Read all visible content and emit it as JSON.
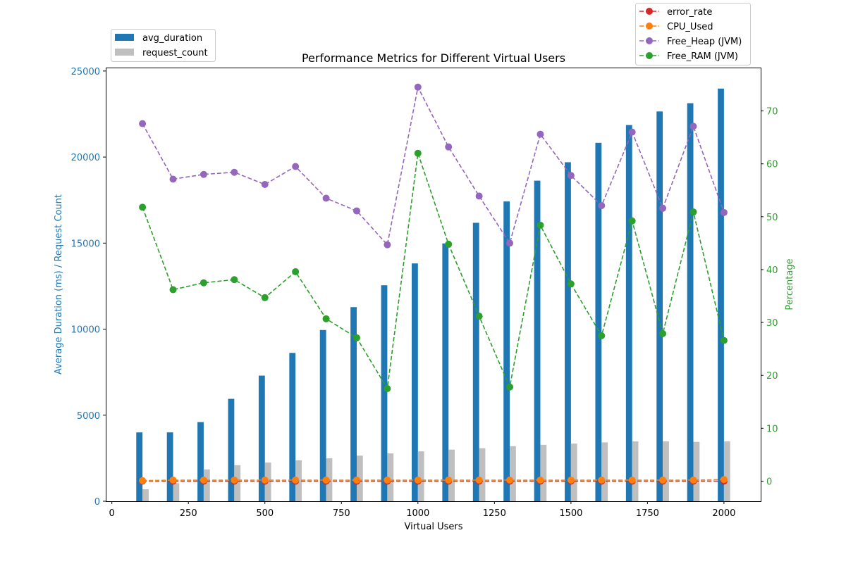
{
  "chart_data": {
    "type": "bar",
    "title": "Performance Metrics for Different Virtual Users",
    "xlabel": "Virtual Users",
    "ylabel_left": "Average Duration (ms) / Request Count",
    "ylabel_right": "Percentage",
    "xlim": [
      -20,
      2120
    ],
    "ylim_left": [
      0,
      25200
    ],
    "ylim_right": [
      -3.8,
      78.2
    ],
    "xticks": [
      0,
      250,
      500,
      750,
      1000,
      1250,
      1500,
      1750,
      2000
    ],
    "yticks_left": [
      0,
      5000,
      10000,
      15000,
      20000,
      25000
    ],
    "yticks_right": [
      0,
      10,
      20,
      30,
      40,
      50,
      60,
      70
    ],
    "grid": false,
    "x": [
      100,
      200,
      300,
      400,
      500,
      600,
      700,
      800,
      900,
      1000,
      1100,
      1200,
      1300,
      1400,
      1500,
      1600,
      1700,
      1800,
      1900,
      2000
    ],
    "bar_series": [
      {
        "name": "avg_duration",
        "color": "#1f77b4",
        "values": [
          4000,
          4000,
          4600,
          5950,
          7300,
          8620,
          9950,
          11280,
          12550,
          13820,
          14980,
          16180,
          17420,
          18630,
          19700,
          20830,
          21860,
          22650,
          23130,
          23980
        ]
      },
      {
        "name": "request_count",
        "color": "#bfbfbf",
        "values": [
          700,
          1050,
          1850,
          2100,
          2250,
          2380,
          2500,
          2650,
          2780,
          2900,
          3000,
          3080,
          3200,
          3280,
          3350,
          3420,
          3480,
          3480,
          3450,
          3480
        ]
      }
    ],
    "line_series": [
      {
        "name": "error_rate",
        "color": "#d62728",
        "values": [
          0.0,
          0.0,
          0.0,
          0.0,
          0.0,
          0.0,
          0.0,
          0.0,
          0.0,
          0.0,
          0.0,
          0.0,
          0.0,
          0.0,
          0.0,
          0.0,
          0.0,
          0.0,
          0.0,
          0.0
        ]
      },
      {
        "name": "CPU_Used",
        "color": "#ff7f0e",
        "values": [
          0.1,
          0.2,
          0.2,
          0.2,
          0.2,
          0.2,
          0.2,
          0.2,
          0.2,
          0.2,
          0.2,
          0.2,
          0.2,
          0.2,
          0.2,
          0.2,
          0.2,
          0.2,
          0.2,
          0.3
        ]
      },
      {
        "name": "Free_Heap (JVM)",
        "color": "#9467bd",
        "values": [
          67.6,
          57.1,
          58.0,
          58.4,
          56.1,
          59.5,
          53.5,
          51.1,
          44.7,
          74.5,
          63.2,
          53.9,
          45.0,
          65.6,
          57.8,
          52.1,
          66.0,
          51.6,
          67.1,
          50.8
        ]
      },
      {
        "name": "Free_RAM (JVM)",
        "color": "#2ca02c",
        "values": [
          51.8,
          36.2,
          37.5,
          38.1,
          34.7,
          39.6,
          30.7,
          27.1,
          17.5,
          62.0,
          44.8,
          31.2,
          17.8,
          48.4,
          37.3,
          27.5,
          49.2,
          27.9,
          50.9,
          26.6
        ]
      }
    ],
    "legend_left": {
      "placement": "upper-left-outside",
      "entries": [
        "avg_duration",
        "request_count"
      ]
    },
    "legend_right": {
      "placement": "upper-right-outside",
      "entries": [
        "error_rate",
        "CPU_Used",
        "Free_Heap (JVM)",
        "Free_RAM (JVM)"
      ]
    },
    "colors": {
      "left_axis": "#1f77b4",
      "right_axis": "#2ca02c",
      "text": "#000000"
    }
  }
}
